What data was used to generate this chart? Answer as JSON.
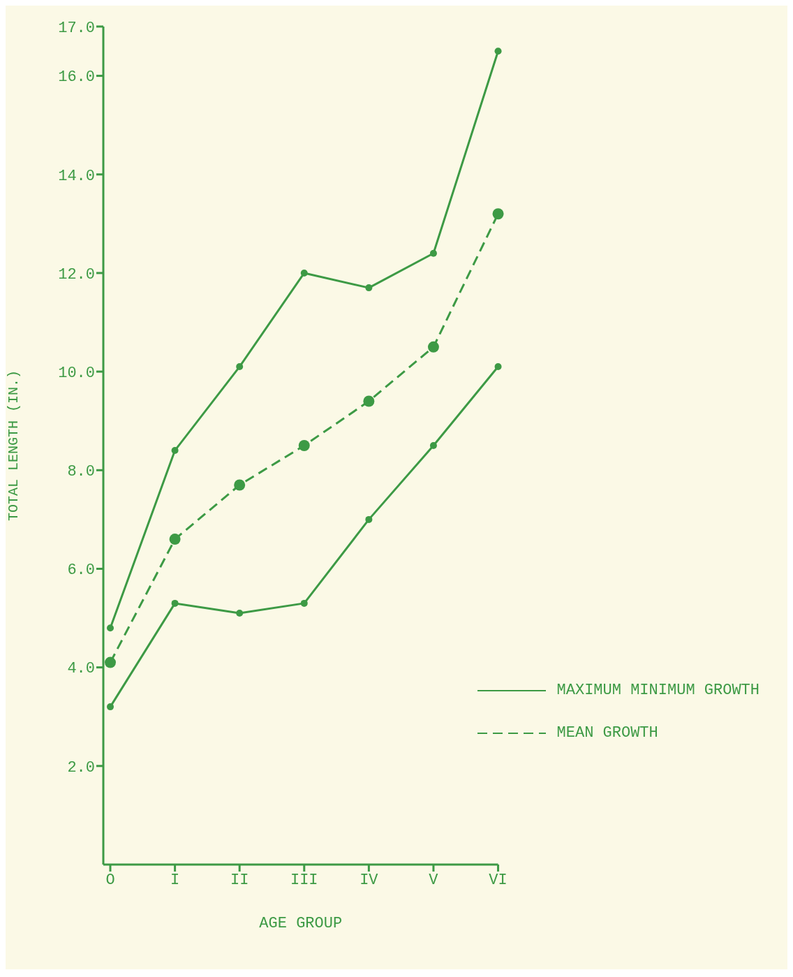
{
  "chart_data": {
    "type": "line",
    "xlabel": "AGE GROUP",
    "ylabel": "TOTAL LENGTH (IN.)",
    "categories": [
      "O",
      "I",
      "II",
      "III",
      "IV",
      "V",
      "VI"
    ],
    "series": [
      {
        "name": "MAXIMUM MINIMUM GROWTH",
        "color": "#3d9a45",
        "line_style": "solid",
        "values": [
          4.8,
          8.4,
          10.1,
          12.0,
          11.7,
          12.4,
          16.5
        ]
      },
      {
        "name": "MEAN GROWTH",
        "color": "#3d9a45",
        "line_style": "dashed",
        "values": [
          4.1,
          6.6,
          7.7,
          8.5,
          9.4,
          10.5,
          13.2
        ]
      },
      {
        "color": "#3d9a45",
        "line_style": "solid",
        "values": [
          3.2,
          5.3,
          5.1,
          5.3,
          7.0,
          8.5,
          10.1
        ]
      }
    ],
    "ylim": [
      0,
      17
    ],
    "yticks": [
      {
        "value": 2,
        "label": "2.0"
      },
      {
        "value": 4,
        "label": "4.0"
      },
      {
        "value": 6,
        "label": "6.0"
      },
      {
        "value": 8,
        "label": "8.0"
      },
      {
        "value": 10,
        "label": "10.0"
      },
      {
        "value": 12,
        "label": "12.0"
      },
      {
        "value": 14,
        "label": "14.0"
      },
      {
        "value": 16,
        "label": "16.0"
      },
      {
        "value": 17,
        "label": "17.0"
      }
    ],
    "grid": false,
    "legend": "bottom right",
    "marker": "circle"
  }
}
